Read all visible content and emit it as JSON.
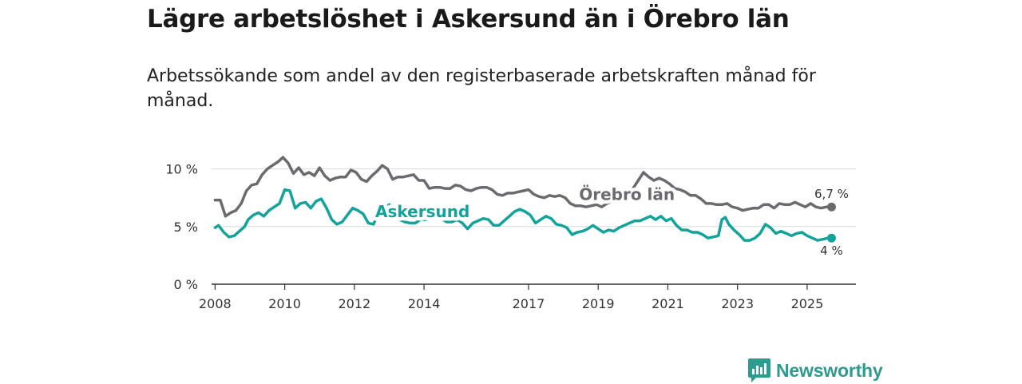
{
  "title": "Lägre arbetslöshet i Askersund än i Örebro län",
  "subtitle": "Arbetssökande som andel av den registerbaserade arbetskraften månad för månad.",
  "brand": {
    "name": "Newsworthy",
    "icon": "bar-chart-speech-icon",
    "color": "#2f9a8e"
  },
  "chart_data": {
    "type": "line",
    "ylim": [
      0,
      10.8
    ],
    "xlim": [
      2007.9,
      2026.4
    ],
    "yticks": [
      {
        "value": 0,
        "label": "0 %"
      },
      {
        "value": 5,
        "label": "5 %"
      },
      {
        "value": 10,
        "label": "10 %"
      }
    ],
    "xticks": [
      {
        "value": 2008,
        "label": "2008"
      },
      {
        "value": 2010,
        "label": "2010"
      },
      {
        "value": 2012,
        "label": "2012"
      },
      {
        "value": 2014,
        "label": "2014"
      },
      {
        "value": 2017,
        "label": "2017"
      },
      {
        "value": 2019,
        "label": "2019"
      },
      {
        "value": 2021,
        "label": "2021"
      },
      {
        "value": 2023,
        "label": "2023"
      },
      {
        "value": 2025,
        "label": "2025"
      }
    ],
    "grid": true,
    "series": [
      {
        "name": "Örebro län",
        "color": "#6b6b6f",
        "end_label": "6,7 %",
        "points": [
          [
            2008.0,
            7.3
          ],
          [
            2008.15,
            7.3
          ],
          [
            2008.3,
            5.9
          ],
          [
            2008.45,
            6.2
          ],
          [
            2008.6,
            6.4
          ],
          [
            2008.75,
            7.0
          ],
          [
            2008.9,
            8.1
          ],
          [
            2009.05,
            8.6
          ],
          [
            2009.2,
            8.7
          ],
          [
            2009.35,
            9.5
          ],
          [
            2009.5,
            10.0
          ],
          [
            2009.65,
            10.3
          ],
          [
            2009.8,
            10.6
          ],
          [
            2009.95,
            11.0
          ],
          [
            2010.1,
            10.5
          ],
          [
            2010.25,
            9.6
          ],
          [
            2010.4,
            10.1
          ],
          [
            2010.55,
            9.5
          ],
          [
            2010.7,
            9.7
          ],
          [
            2010.85,
            9.4
          ],
          [
            2011.0,
            10.1
          ],
          [
            2011.15,
            9.4
          ],
          [
            2011.3,
            9.0
          ],
          [
            2011.45,
            9.2
          ],
          [
            2011.6,
            9.3
          ],
          [
            2011.75,
            9.3
          ],
          [
            2011.9,
            9.9
          ],
          [
            2012.05,
            9.7
          ],
          [
            2012.2,
            9.1
          ],
          [
            2012.35,
            8.9
          ],
          [
            2012.5,
            9.4
          ],
          [
            2012.65,
            9.8
          ],
          [
            2012.8,
            10.3
          ],
          [
            2012.95,
            10.0
          ],
          [
            2013.1,
            9.1
          ],
          [
            2013.25,
            9.3
          ],
          [
            2013.4,
            9.3
          ],
          [
            2013.55,
            9.4
          ],
          [
            2013.7,
            9.5
          ],
          [
            2013.85,
            9.0
          ],
          [
            2014.0,
            9.0
          ],
          [
            2014.15,
            8.3
          ],
          [
            2014.3,
            8.4
          ],
          [
            2014.45,
            8.4
          ],
          [
            2014.6,
            8.3
          ],
          [
            2014.75,
            8.3
          ],
          [
            2014.9,
            8.6
          ],
          [
            2015.05,
            8.5
          ],
          [
            2015.2,
            8.2
          ],
          [
            2015.35,
            8.1
          ],
          [
            2015.5,
            8.3
          ],
          [
            2015.65,
            8.4
          ],
          [
            2015.8,
            8.4
          ],
          [
            2015.95,
            8.2
          ],
          [
            2016.1,
            7.8
          ],
          [
            2016.25,
            7.7
          ],
          [
            2016.4,
            7.9
          ],
          [
            2016.55,
            7.9
          ],
          [
            2016.7,
            8.0
          ],
          [
            2016.85,
            8.1
          ],
          [
            2017.0,
            8.2
          ],
          [
            2017.15,
            7.8
          ],
          [
            2017.3,
            7.6
          ],
          [
            2017.45,
            7.5
          ],
          [
            2017.6,
            7.7
          ],
          [
            2017.75,
            7.6
          ],
          [
            2017.9,
            7.7
          ],
          [
            2018.05,
            7.5
          ],
          [
            2018.2,
            7.0
          ],
          [
            2018.35,
            6.8
          ],
          [
            2018.5,
            6.8
          ],
          [
            2018.65,
            6.7
          ],
          [
            2018.8,
            6.8
          ],
          [
            2018.95,
            6.9
          ],
          [
            2019.1,
            6.7
          ],
          [
            2019.25,
            7.0
          ],
          [
            2019.4,
            7.2
          ],
          [
            2019.55,
            7.4
          ],
          [
            2019.7,
            7.7
          ],
          [
            2019.85,
            7.9
          ],
          [
            2020.0,
            8.3
          ],
          [
            2020.15,
            9.0
          ],
          [
            2020.3,
            9.7
          ],
          [
            2020.45,
            9.3
          ],
          [
            2020.6,
            9.0
          ],
          [
            2020.75,
            9.2
          ],
          [
            2020.9,
            9.0
          ],
          [
            2021.05,
            8.7
          ],
          [
            2021.2,
            8.3
          ],
          [
            2021.35,
            8.2
          ],
          [
            2021.5,
            8.0
          ],
          [
            2021.65,
            7.7
          ],
          [
            2021.8,
            7.7
          ],
          [
            2021.95,
            7.4
          ],
          [
            2022.1,
            7.0
          ],
          [
            2022.25,
            7.0
          ],
          [
            2022.4,
            6.9
          ],
          [
            2022.55,
            6.9
          ],
          [
            2022.7,
            7.0
          ],
          [
            2022.85,
            6.7
          ],
          [
            2023.0,
            6.6
          ],
          [
            2023.15,
            6.4
          ],
          [
            2023.3,
            6.5
          ],
          [
            2023.45,
            6.6
          ],
          [
            2023.6,
            6.6
          ],
          [
            2023.75,
            6.9
          ],
          [
            2023.9,
            6.9
          ],
          [
            2024.05,
            6.6
          ],
          [
            2024.2,
            7.0
          ],
          [
            2024.35,
            6.9
          ],
          [
            2024.5,
            6.9
          ],
          [
            2024.65,
            7.1
          ],
          [
            2024.8,
            6.9
          ],
          [
            2024.95,
            6.7
          ],
          [
            2025.1,
            7.0
          ],
          [
            2025.25,
            6.7
          ],
          [
            2025.4,
            6.6
          ],
          [
            2025.55,
            6.7
          ],
          [
            2025.7,
            6.7
          ]
        ]
      },
      {
        "name": "Askersund",
        "color": "#14a39a",
        "end_label": "4 %",
        "points": [
          [
            2008.0,
            4.9
          ],
          [
            2008.1,
            5.1
          ],
          [
            2008.25,
            4.5
          ],
          [
            2008.4,
            4.1
          ],
          [
            2008.55,
            4.2
          ],
          [
            2008.7,
            4.6
          ],
          [
            2008.85,
            5.0
          ],
          [
            2008.95,
            5.6
          ],
          [
            2009.1,
            6.0
          ],
          [
            2009.25,
            6.2
          ],
          [
            2009.4,
            5.9
          ],
          [
            2009.55,
            6.4
          ],
          [
            2009.7,
            6.7
          ],
          [
            2009.85,
            7.0
          ],
          [
            2010.0,
            8.2
          ],
          [
            2010.15,
            8.1
          ],
          [
            2010.3,
            6.6
          ],
          [
            2010.45,
            7.0
          ],
          [
            2010.6,
            7.1
          ],
          [
            2010.75,
            6.6
          ],
          [
            2010.9,
            7.2
          ],
          [
            2011.05,
            7.4
          ],
          [
            2011.2,
            6.6
          ],
          [
            2011.35,
            5.6
          ],
          [
            2011.5,
            5.2
          ],
          [
            2011.65,
            5.4
          ],
          [
            2011.8,
            6.0
          ],
          [
            2011.95,
            6.6
          ],
          [
            2012.1,
            6.4
          ],
          [
            2012.25,
            6.1
          ],
          [
            2012.4,
            5.3
          ],
          [
            2012.55,
            5.2
          ],
          [
            2012.7,
            6.3
          ],
          [
            2012.85,
            6.5
          ],
          [
            2013.0,
            6.9
          ],
          [
            2013.15,
            6.4
          ],
          [
            2013.3,
            5.6
          ],
          [
            2013.45,
            5.4
          ],
          [
            2013.6,
            5.3
          ],
          [
            2013.75,
            5.3
          ],
          [
            2013.9,
            5.6
          ],
          [
            2014.05,
            5.6
          ],
          [
            2014.2,
            5.9
          ],
          [
            2014.35,
            6.1
          ],
          [
            2014.5,
            5.7
          ],
          [
            2014.65,
            5.4
          ],
          [
            2014.8,
            5.4
          ],
          [
            2014.95,
            5.6
          ],
          [
            2015.1,
            5.3
          ],
          [
            2015.25,
            4.8
          ],
          [
            2015.4,
            5.3
          ],
          [
            2015.55,
            5.5
          ],
          [
            2015.7,
            5.7
          ],
          [
            2015.85,
            5.6
          ],
          [
            2016.0,
            5.1
          ],
          [
            2016.15,
            5.1
          ],
          [
            2016.3,
            5.5
          ],
          [
            2016.45,
            5.9
          ],
          [
            2016.6,
            6.3
          ],
          [
            2016.75,
            6.5
          ],
          [
            2016.9,
            6.3
          ],
          [
            2017.05,
            6.0
          ],
          [
            2017.2,
            5.3
          ],
          [
            2017.35,
            5.6
          ],
          [
            2017.5,
            5.9
          ],
          [
            2017.65,
            5.7
          ],
          [
            2017.8,
            5.2
          ],
          [
            2017.95,
            5.1
          ],
          [
            2018.1,
            4.9
          ],
          [
            2018.25,
            4.3
          ],
          [
            2018.4,
            4.5
          ],
          [
            2018.55,
            4.6
          ],
          [
            2018.7,
            4.8
          ],
          [
            2018.85,
            5.1
          ],
          [
            2019.0,
            4.8
          ],
          [
            2019.15,
            4.5
          ],
          [
            2019.3,
            4.7
          ],
          [
            2019.45,
            4.6
          ],
          [
            2019.6,
            4.9
          ],
          [
            2019.75,
            5.1
          ],
          [
            2019.9,
            5.3
          ],
          [
            2020.05,
            5.5
          ],
          [
            2020.2,
            5.5
          ],
          [
            2020.35,
            5.7
          ],
          [
            2020.5,
            5.9
          ],
          [
            2020.65,
            5.6
          ],
          [
            2020.8,
            5.9
          ],
          [
            2020.95,
            5.5
          ],
          [
            2021.1,
            5.7
          ],
          [
            2021.25,
            5.1
          ],
          [
            2021.4,
            4.7
          ],
          [
            2021.55,
            4.7
          ],
          [
            2021.7,
            4.5
          ],
          [
            2021.85,
            4.5
          ],
          [
            2022.0,
            4.3
          ],
          [
            2022.15,
            4.0
          ],
          [
            2022.3,
            4.1
          ],
          [
            2022.45,
            4.2
          ],
          [
            2022.55,
            5.6
          ],
          [
            2022.65,
            5.8
          ],
          [
            2022.75,
            5.2
          ],
          [
            2022.9,
            4.7
          ],
          [
            2023.05,
            4.3
          ],
          [
            2023.2,
            3.8
          ],
          [
            2023.35,
            3.8
          ],
          [
            2023.5,
            4.0
          ],
          [
            2023.65,
            4.4
          ],
          [
            2023.8,
            5.2
          ],
          [
            2023.95,
            4.9
          ],
          [
            2024.1,
            4.4
          ],
          [
            2024.25,
            4.6
          ],
          [
            2024.4,
            4.4
          ],
          [
            2024.55,
            4.2
          ],
          [
            2024.7,
            4.4
          ],
          [
            2024.85,
            4.5
          ],
          [
            2025.0,
            4.2
          ],
          [
            2025.15,
            4.0
          ],
          [
            2025.3,
            3.8
          ],
          [
            2025.45,
            3.9
          ],
          [
            2025.6,
            4.0
          ],
          [
            2025.7,
            4.0
          ]
        ]
      }
    ]
  }
}
